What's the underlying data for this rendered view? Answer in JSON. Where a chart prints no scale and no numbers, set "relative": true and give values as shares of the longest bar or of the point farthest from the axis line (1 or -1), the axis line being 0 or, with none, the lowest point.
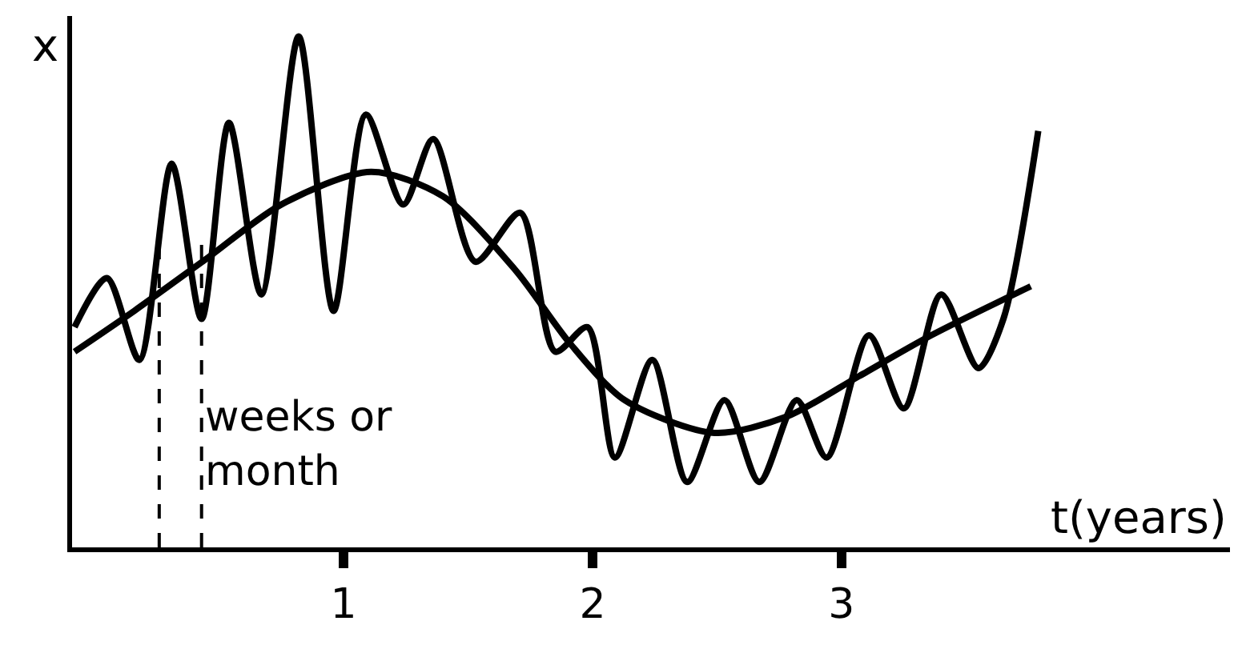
{
  "chart_data": {
    "type": "line",
    "relative": true,
    "xlabel": "t(years)",
    "ylabel": "x",
    "xlim": [
      -0.09,
      4.56
    ],
    "xticks": [
      1,
      2,
      3
    ],
    "annotations": [
      {
        "text": "weeks or\nmonth",
        "x": 0.43,
        "y": 0.2
      }
    ],
    "ref_lines": [
      {
        "axis": "x",
        "value": 0.26,
        "label": null,
        "line_style": "dashed",
        "color": "#000000"
      },
      {
        "axis": "x",
        "value": 0.43,
        "label": null,
        "line_style": "dashed",
        "color": "#000000"
      }
    ],
    "series": [
      {
        "color": "#000000",
        "x": [
          -0.08,
          0.16,
          0.45,
          0.75,
          1.11,
          1.4,
          1.69,
          1.91,
          2.13,
          2.49,
          2.78,
          3.07,
          3.36,
          3.76
        ],
        "values": [
          0.383,
          0.463,
          0.565,
          0.671,
          0.735,
          0.687,
          0.543,
          0.399,
          0.288,
          0.224,
          0.256,
          0.335,
          0.415,
          0.511
        ]
      },
      {
        "color": "#000000",
        "x": [
          -0.08,
          0.05,
          0.18,
          0.31,
          0.43,
          0.54,
          0.67,
          0.82,
          0.96,
          1.09,
          1.24,
          1.36,
          1.53,
          1.71,
          1.85,
          1.98,
          2.09,
          2.24,
          2.38,
          2.53,
          2.67,
          2.82,
          2.94,
          3.11,
          3.25,
          3.4,
          3.55,
          3.65,
          3.79
        ],
        "values": [
          0.431,
          0.527,
          0.367,
          0.751,
          0.447,
          0.831,
          0.495,
          1,
          0.463,
          0.847,
          0.671,
          0.799,
          0.559,
          0.655,
          0.383,
          0.431,
          0.176,
          0.367,
          0.128,
          0.288,
          0.128,
          0.288,
          0.176,
          0.415,
          0.272,
          0.495,
          0.351,
          0.447,
          0.815
        ]
      }
    ]
  }
}
